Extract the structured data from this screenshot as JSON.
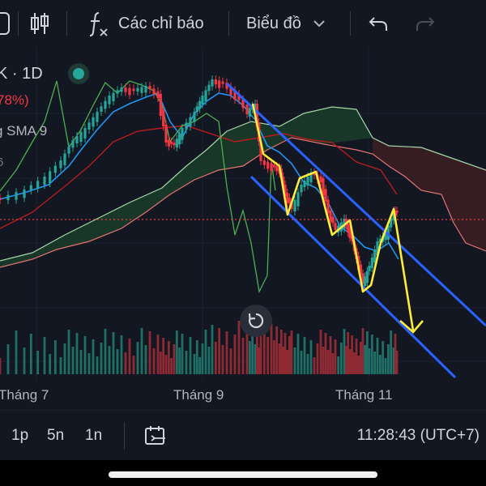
{
  "toolbar": {
    "indicators_label": "Các chỉ báo",
    "chart_type_label": "Biểu đồ",
    "icons": [
      "candles-icon",
      "function-icon",
      "chevron-down-icon",
      "undo-icon",
      "redo-icon"
    ]
  },
  "legend": {
    "symbol": "K · 1D",
    "change": "78%)",
    "sma": "g SMA 9",
    "value": "6"
  },
  "x_axis": {
    "months": [
      "Tháng 7",
      "Tháng 9",
      "Tháng 11"
    ]
  },
  "bottom_bar": {
    "intervals": [
      "1p",
      "5n",
      "1n"
    ],
    "clock": "11:28:43 (UTC+7)",
    "icons": [
      "calendar-range-icon"
    ]
  },
  "colors": {
    "background": "#131722",
    "up": "#26a69a",
    "down": "#f23645",
    "channel": "#2962ff",
    "arrow": "#ffeb3b",
    "sma": "#2196f3",
    "cloud_green": "#a5d6a7",
    "cloud_red": "#e57373",
    "chikou": "#4caf50"
  },
  "chart_data": {
    "type": "candlestick",
    "timeframe": "1D",
    "indicators": [
      "SMA 9",
      "Ichimoku Cloud"
    ]
  }
}
